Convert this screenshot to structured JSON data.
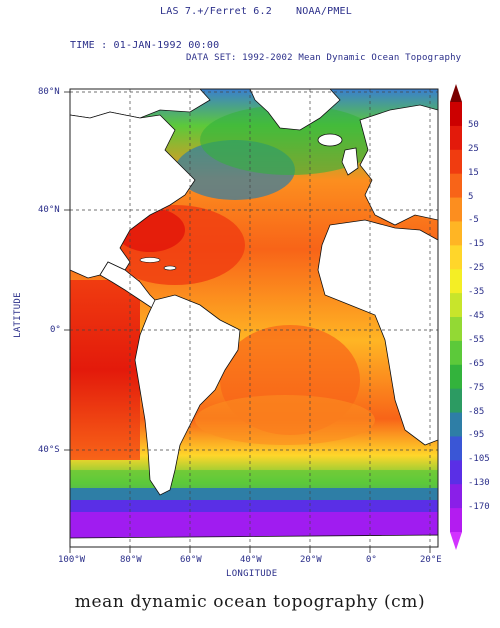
{
  "header": {
    "software": "LAS 7.+/Ferret 6.2",
    "org": "NOAA/PMEL",
    "time": "TIME : 01-JAN-1992 00:00",
    "dataset": "DATA SET: 1992-2002 Mean Dynamic Ocean Topography"
  },
  "map": {
    "lat_ticks": [
      "80°N",
      "40°N",
      "0°",
      "40°S"
    ],
    "lon_ticks": [
      "100°W",
      "80°W",
      "60°W",
      "40°W",
      "20°W",
      "0°",
      "20°E"
    ],
    "xlabel": "LONGITUDE",
    "ylabel": "LATITUDE",
    "lon_range": [
      -102,
      22
    ],
    "lat_range": [
      -72,
      82
    ]
  },
  "colorbar": {
    "labels": [
      "50",
      "25",
      "15",
      "5",
      "-5",
      "-15",
      "-25",
      "-35",
      "-45",
      "-55",
      "-65",
      "-75",
      "-85",
      "-95",
      "-105",
      "-130",
      "-170"
    ],
    "colors": [
      "#cc0000",
      "#e31a0b",
      "#f03c10",
      "#f86418",
      "#fc8e1f",
      "#ffb524",
      "#ffd62a",
      "#f4ee25",
      "#c8e52b",
      "#93d934",
      "#5cc93a",
      "#33b33c",
      "#2c9b62",
      "#2e7ea6",
      "#3a56d6",
      "#5a2fe6",
      "#8a1fe8",
      "#b31cf0"
    ],
    "top_color": "#7a0000",
    "bottom_color": "#d233ff"
  },
  "caption": "mean dynamic ocean topography (cm)"
}
